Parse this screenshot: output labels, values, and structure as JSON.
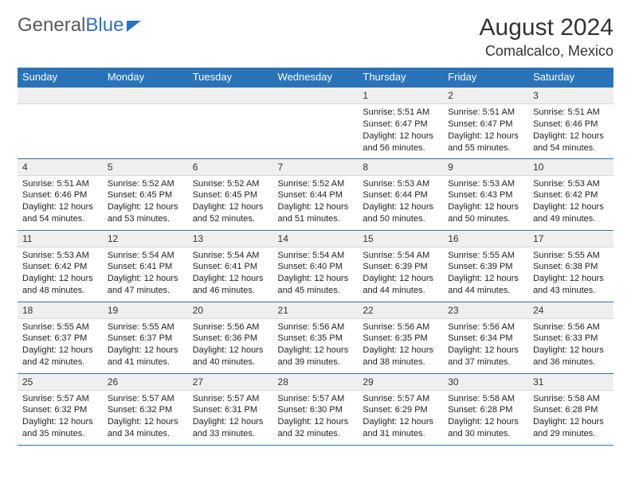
{
  "logo": {
    "part1": "General",
    "part2": "Blue"
  },
  "title": "August 2024",
  "location": "Comalcalco, Mexico",
  "style": {
    "header_bg": "#2a73b8",
    "header_text": "#ffffff",
    "daynum_bg": "#efefef",
    "border_color": "#2a73b8",
    "body_text": "#222222",
    "month_fontsize": 30,
    "location_fontsize": 18,
    "th_fontsize": 13,
    "daynum_fontsize": 12,
    "cell_fontsize": 11
  },
  "weekdays": [
    "Sunday",
    "Monday",
    "Tuesday",
    "Wednesday",
    "Thursday",
    "Friday",
    "Saturday"
  ],
  "weeks": [
    [
      null,
      null,
      null,
      null,
      {
        "n": "1",
        "sr": "Sunrise: 5:51 AM",
        "ss": "Sunset: 6:47 PM",
        "d1": "Daylight: 12 hours",
        "d2": "and 56 minutes."
      },
      {
        "n": "2",
        "sr": "Sunrise: 5:51 AM",
        "ss": "Sunset: 6:47 PM",
        "d1": "Daylight: 12 hours",
        "d2": "and 55 minutes."
      },
      {
        "n": "3",
        "sr": "Sunrise: 5:51 AM",
        "ss": "Sunset: 6:46 PM",
        "d1": "Daylight: 12 hours",
        "d2": "and 54 minutes."
      }
    ],
    [
      {
        "n": "4",
        "sr": "Sunrise: 5:51 AM",
        "ss": "Sunset: 6:46 PM",
        "d1": "Daylight: 12 hours",
        "d2": "and 54 minutes."
      },
      {
        "n": "5",
        "sr": "Sunrise: 5:52 AM",
        "ss": "Sunset: 6:45 PM",
        "d1": "Daylight: 12 hours",
        "d2": "and 53 minutes."
      },
      {
        "n": "6",
        "sr": "Sunrise: 5:52 AM",
        "ss": "Sunset: 6:45 PM",
        "d1": "Daylight: 12 hours",
        "d2": "and 52 minutes."
      },
      {
        "n": "7",
        "sr": "Sunrise: 5:52 AM",
        "ss": "Sunset: 6:44 PM",
        "d1": "Daylight: 12 hours",
        "d2": "and 51 minutes."
      },
      {
        "n": "8",
        "sr": "Sunrise: 5:53 AM",
        "ss": "Sunset: 6:44 PM",
        "d1": "Daylight: 12 hours",
        "d2": "and 50 minutes."
      },
      {
        "n": "9",
        "sr": "Sunrise: 5:53 AM",
        "ss": "Sunset: 6:43 PM",
        "d1": "Daylight: 12 hours",
        "d2": "and 50 minutes."
      },
      {
        "n": "10",
        "sr": "Sunrise: 5:53 AM",
        "ss": "Sunset: 6:42 PM",
        "d1": "Daylight: 12 hours",
        "d2": "and 49 minutes."
      }
    ],
    [
      {
        "n": "11",
        "sr": "Sunrise: 5:53 AM",
        "ss": "Sunset: 6:42 PM",
        "d1": "Daylight: 12 hours",
        "d2": "and 48 minutes."
      },
      {
        "n": "12",
        "sr": "Sunrise: 5:54 AM",
        "ss": "Sunset: 6:41 PM",
        "d1": "Daylight: 12 hours",
        "d2": "and 47 minutes."
      },
      {
        "n": "13",
        "sr": "Sunrise: 5:54 AM",
        "ss": "Sunset: 6:41 PM",
        "d1": "Daylight: 12 hours",
        "d2": "and 46 minutes."
      },
      {
        "n": "14",
        "sr": "Sunrise: 5:54 AM",
        "ss": "Sunset: 6:40 PM",
        "d1": "Daylight: 12 hours",
        "d2": "and 45 minutes."
      },
      {
        "n": "15",
        "sr": "Sunrise: 5:54 AM",
        "ss": "Sunset: 6:39 PM",
        "d1": "Daylight: 12 hours",
        "d2": "and 44 minutes."
      },
      {
        "n": "16",
        "sr": "Sunrise: 5:55 AM",
        "ss": "Sunset: 6:39 PM",
        "d1": "Daylight: 12 hours",
        "d2": "and 44 minutes."
      },
      {
        "n": "17",
        "sr": "Sunrise: 5:55 AM",
        "ss": "Sunset: 6:38 PM",
        "d1": "Daylight: 12 hours",
        "d2": "and 43 minutes."
      }
    ],
    [
      {
        "n": "18",
        "sr": "Sunrise: 5:55 AM",
        "ss": "Sunset: 6:37 PM",
        "d1": "Daylight: 12 hours",
        "d2": "and 42 minutes."
      },
      {
        "n": "19",
        "sr": "Sunrise: 5:55 AM",
        "ss": "Sunset: 6:37 PM",
        "d1": "Daylight: 12 hours",
        "d2": "and 41 minutes."
      },
      {
        "n": "20",
        "sr": "Sunrise: 5:56 AM",
        "ss": "Sunset: 6:36 PM",
        "d1": "Daylight: 12 hours",
        "d2": "and 40 minutes."
      },
      {
        "n": "21",
        "sr": "Sunrise: 5:56 AM",
        "ss": "Sunset: 6:35 PM",
        "d1": "Daylight: 12 hours",
        "d2": "and 39 minutes."
      },
      {
        "n": "22",
        "sr": "Sunrise: 5:56 AM",
        "ss": "Sunset: 6:35 PM",
        "d1": "Daylight: 12 hours",
        "d2": "and 38 minutes."
      },
      {
        "n": "23",
        "sr": "Sunrise: 5:56 AM",
        "ss": "Sunset: 6:34 PM",
        "d1": "Daylight: 12 hours",
        "d2": "and 37 minutes."
      },
      {
        "n": "24",
        "sr": "Sunrise: 5:56 AM",
        "ss": "Sunset: 6:33 PM",
        "d1": "Daylight: 12 hours",
        "d2": "and 36 minutes."
      }
    ],
    [
      {
        "n": "25",
        "sr": "Sunrise: 5:57 AM",
        "ss": "Sunset: 6:32 PM",
        "d1": "Daylight: 12 hours",
        "d2": "and 35 minutes."
      },
      {
        "n": "26",
        "sr": "Sunrise: 5:57 AM",
        "ss": "Sunset: 6:32 PM",
        "d1": "Daylight: 12 hours",
        "d2": "and 34 minutes."
      },
      {
        "n": "27",
        "sr": "Sunrise: 5:57 AM",
        "ss": "Sunset: 6:31 PM",
        "d1": "Daylight: 12 hours",
        "d2": "and 33 minutes."
      },
      {
        "n": "28",
        "sr": "Sunrise: 5:57 AM",
        "ss": "Sunset: 6:30 PM",
        "d1": "Daylight: 12 hours",
        "d2": "and 32 minutes."
      },
      {
        "n": "29",
        "sr": "Sunrise: 5:57 AM",
        "ss": "Sunset: 6:29 PM",
        "d1": "Daylight: 12 hours",
        "d2": "and 31 minutes."
      },
      {
        "n": "30",
        "sr": "Sunrise: 5:58 AM",
        "ss": "Sunset: 6:28 PM",
        "d1": "Daylight: 12 hours",
        "d2": "and 30 minutes."
      },
      {
        "n": "31",
        "sr": "Sunrise: 5:58 AM",
        "ss": "Sunset: 6:28 PM",
        "d1": "Daylight: 12 hours",
        "d2": "and 29 minutes."
      }
    ]
  ]
}
